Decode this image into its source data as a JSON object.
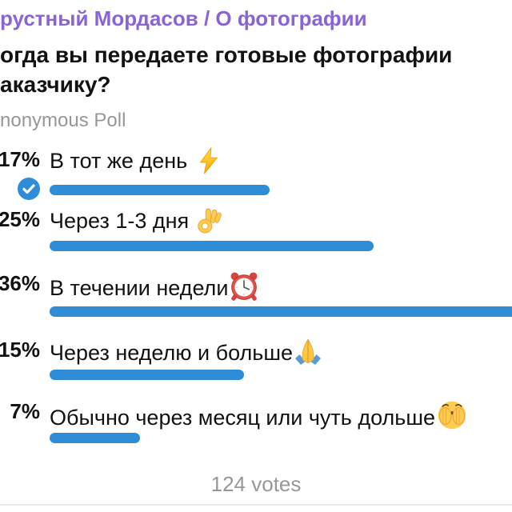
{
  "channel": {
    "title": "рустный Мордасов / О фотографии"
  },
  "poll": {
    "question": "огда вы передаете готовые фотографии аказчику?",
    "type_label": "nonymous Poll",
    "options": [
      {
        "percent": "17%",
        "percent_value": 17,
        "label": "В тот же день",
        "emoji": "zap",
        "voted": true
      },
      {
        "percent": "25%",
        "percent_value": 25,
        "label": "Через 1-3 дня",
        "emoji": "ok-hand",
        "voted": false
      },
      {
        "percent": "36%",
        "percent_value": 36,
        "label": "В течении недели",
        "emoji": "alarm-clock",
        "voted": false
      },
      {
        "percent": "15%",
        "percent_value": 15,
        "label": "Через неделю и больше",
        "emoji": "folded-hands",
        "voted": false
      },
      {
        "percent": "7%",
        "percent_value": 7,
        "label": "Обычно через месяц или чуть дольше",
        "emoji": "face-with-peeking-eye",
        "voted": false
      }
    ],
    "footer": "124 votes"
  },
  "colors": {
    "accent_blue": "#2F8CD7",
    "channel_purple": "#8A63D6",
    "muted_gray": "#97979B",
    "divider": "#E8E8EA",
    "text": "#121212"
  }
}
